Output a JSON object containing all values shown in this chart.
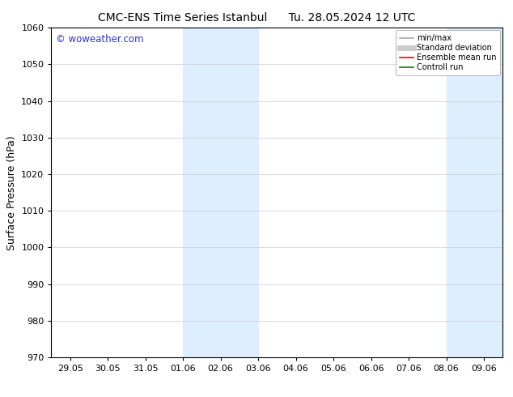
{
  "title_left": "CMC-ENS Time Series Istanbul",
  "title_right": "Tu. 28.05.2024 12 UTC",
  "ylabel": "Surface Pressure (hPa)",
  "ylim": [
    970,
    1060
  ],
  "yticks": [
    970,
    980,
    990,
    1000,
    1010,
    1020,
    1030,
    1040,
    1050,
    1060
  ],
  "xtick_labels": [
    "29.05",
    "30.05",
    "31.05",
    "01.06",
    "02.06",
    "03.06",
    "04.06",
    "05.06",
    "06.06",
    "07.06",
    "08.06",
    "09.06"
  ],
  "xtick_positions": [
    0,
    1,
    2,
    3,
    4,
    5,
    6,
    7,
    8,
    9,
    10,
    11
  ],
  "xlim": [
    -0.5,
    11.5
  ],
  "shaded_bands": [
    {
      "x_start": 3.0,
      "x_end": 5.0
    },
    {
      "x_start": 10.0,
      "x_end": 11.5
    }
  ],
  "watermark": "© woweather.com",
  "watermark_color": "#3333cc",
  "legend_items": [
    {
      "label": "min/max",
      "color": "#aaaaaa",
      "lw": 1.2,
      "style": "solid"
    },
    {
      "label": "Standard deviation",
      "color": "#cccccc",
      "lw": 5,
      "style": "solid"
    },
    {
      "label": "Ensemble mean run",
      "color": "#ff0000",
      "lw": 1.2,
      "style": "solid"
    },
    {
      "label": "Controll run",
      "color": "#008000",
      "lw": 1.2,
      "style": "solid"
    }
  ],
  "band_color": "#ddeeff",
  "background_color": "#ffffff",
  "grid_color": "#cccccc",
  "title_fontsize": 10,
  "tick_fontsize": 8,
  "ylabel_fontsize": 9,
  "watermark_fontsize": 8.5,
  "legend_fontsize": 7
}
